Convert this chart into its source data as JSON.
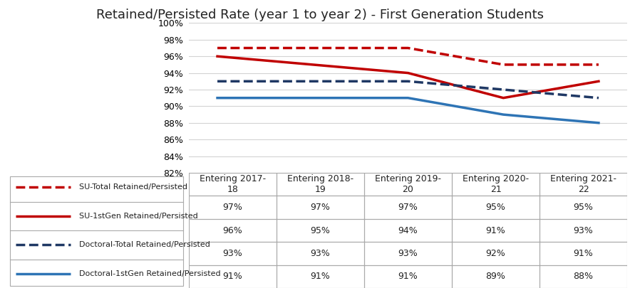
{
  "title": "Retained/Persisted Rate (year 1 to year 2) - First Generation Students",
  "categories": [
    "Entering 2017-\n18",
    "Entering 2018-\n19",
    "Entering 2019-\n20",
    "Entering 2020-\n21",
    "Entering 2021-\n22"
  ],
  "series": [
    {
      "label": "SU-Total Retained/Persisted",
      "values": [
        0.97,
        0.97,
        0.97,
        0.95,
        0.95
      ],
      "color": "#C00000",
      "linestyle": "dashed",
      "linewidth": 2.5
    },
    {
      "label": "SU-1stGen Retained/Persisted",
      "values": [
        0.96,
        0.95,
        0.94,
        0.91,
        0.93
      ],
      "color": "#C00000",
      "linestyle": "solid",
      "linewidth": 2.5
    },
    {
      "label": "Doctoral-Total Retained/Persisted",
      "values": [
        0.93,
        0.93,
        0.93,
        0.92,
        0.91
      ],
      "color": "#1F3864",
      "linestyle": "dashed",
      "linewidth": 2.5
    },
    {
      "label": "Doctoral-1stGen Retained/Persisted",
      "values": [
        0.91,
        0.91,
        0.91,
        0.89,
        0.88
      ],
      "color": "#2E74B5",
      "linestyle": "solid",
      "linewidth": 2.5
    }
  ],
  "table_values": [
    [
      "97%",
      "97%",
      "97%",
      "95%",
      "95%"
    ],
    [
      "96%",
      "95%",
      "94%",
      "91%",
      "93%"
    ],
    [
      "93%",
      "93%",
      "93%",
      "92%",
      "91%"
    ],
    [
      "91%",
      "91%",
      "91%",
      "89%",
      "88%"
    ]
  ],
  "ylim": [
    0.82,
    1.0
  ],
  "yticks": [
    0.82,
    0.84,
    0.86,
    0.88,
    0.9,
    0.92,
    0.94,
    0.96,
    0.98,
    1.0
  ],
  "background_color": "#FFFFFF",
  "grid_color": "#D3D3D3",
  "title_fontsize": 13,
  "axis_fontsize": 9,
  "table_fontsize": 9,
  "legend_colors": [
    "#C00000",
    "#C00000",
    "#1F3864",
    "#2E74B5"
  ],
  "legend_linestyles": [
    "dashed",
    "solid",
    "dashed",
    "solid"
  ]
}
